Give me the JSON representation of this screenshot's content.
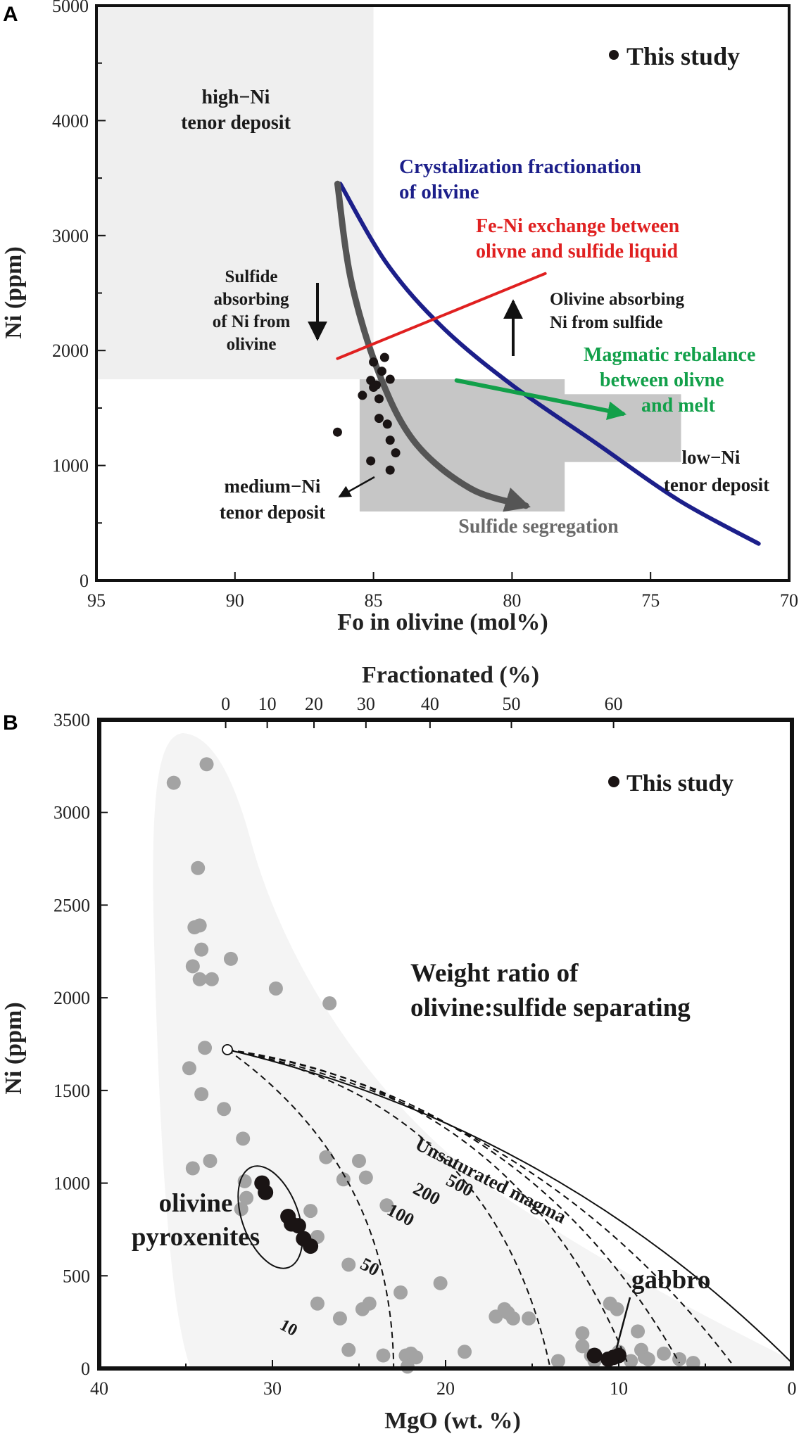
{
  "chart_data": [
    {
      "panel": "A",
      "type": "scatter",
      "xlabel": "Fo in olivine (mol%)",
      "ylabel": "Ni (ppm)",
      "xlim": [
        95,
        70
      ],
      "ylim": [
        0,
        5000
      ],
      "x_ticks": [
        95,
        90,
        85,
        80,
        75,
        70
      ],
      "y_ticks": [
        0,
        1000,
        2000,
        3000,
        4000,
        5000
      ],
      "legend": "This study",
      "regions": [
        {
          "name": "high-Ni-tenor",
          "x": [
            95,
            85
          ],
          "y": [
            1750,
            5000
          ],
          "color": "#efefef"
        },
        {
          "name": "medium-Ni-tenor",
          "x": [
            85.5,
            78.1
          ],
          "y": [
            600,
            1750
          ],
          "color": "#c6c6c6"
        },
        {
          "name": "low-Ni-tenor",
          "x": [
            78.8,
            73.9
          ],
          "y": [
            1030,
            1620
          ],
          "color": "#c6c6c6"
        }
      ],
      "points": [
        {
          "x": 86.3,
          "y": 1290
        },
        {
          "x": 85.0,
          "y": 1900
        },
        {
          "x": 84.6,
          "y": 1940
        },
        {
          "x": 84.7,
          "y": 1820
        },
        {
          "x": 84.4,
          "y": 1750
        },
        {
          "x": 85.1,
          "y": 1740
        },
        {
          "x": 84.9,
          "y": 1700
        },
        {
          "x": 85.0,
          "y": 1680
        },
        {
          "x": 85.4,
          "y": 1610
        },
        {
          "x": 84.8,
          "y": 1580
        },
        {
          "x": 84.8,
          "y": 1410
        },
        {
          "x": 84.5,
          "y": 1360
        },
        {
          "x": 84.4,
          "y": 1220
        },
        {
          "x": 84.2,
          "y": 1110
        },
        {
          "x": 85.1,
          "y": 1040
        },
        {
          "x": 84.4,
          "y": 960
        }
      ],
      "curves": [
        {
          "name": "crystallization",
          "color": "#1c1f8a",
          "points": [
            [
              86.2,
              3450
            ],
            [
              84.5,
              2750
            ],
            [
              82.5,
              2200
            ],
            [
              80,
              1700
            ],
            [
              77,
              1200
            ],
            [
              74,
              700
            ],
            [
              71.1,
              320
            ]
          ]
        },
        {
          "name": "sulfide-segregation",
          "color": "#555555",
          "points": [
            [
              86.3,
              3450
            ],
            [
              85.8,
              2600
            ],
            [
              84.8,
              1800
            ],
            [
              83.5,
              1200
            ],
            [
              81.5,
              800
            ],
            [
              79.5,
              650
            ]
          ]
        },
        {
          "name": "fe-ni-exchange",
          "color": "#e02020",
          "points": [
            [
              86.3,
              1930
            ],
            [
              78.8,
              2670
            ]
          ]
        },
        {
          "name": "magmatic-rebalance",
          "color": "#12a04a",
          "points": [
            [
              82.0,
              1740
            ],
            [
              76.0,
              1450
            ]
          ]
        }
      ],
      "labels": {
        "legend": "This study",
        "high_ni_1": "high−Ni",
        "high_ni_2": "tenor deposit",
        "crystal_1": "Crystalization fractionation",
        "crystal_2": "of olivine",
        "feni_1": "Fe-Ni exchange between",
        "feni_2": "olivne and sulfide liquid",
        "sulfide_abs_1": "Sulfide",
        "sulfide_abs_2": "absorbing",
        "sulfide_abs_3": "of Ni from",
        "sulfide_abs_4": "olivine",
        "oliv_abs_1": "Olivine absorbing",
        "oliv_abs_2": "Ni from sulfide",
        "magmatic_1": "Magmatic rebalance",
        "magmatic_2": "between olivne",
        "magmatic_3": "and melt",
        "low_ni_1": "low−Ni",
        "low_ni_2": "tenor deposit",
        "medium_ni_1": "medium−Ni",
        "medium_ni_2": "tenor deposit",
        "segregation": "Sulfide segregation"
      }
    },
    {
      "panel": "B",
      "type": "scatter",
      "xlabel": "MgO (wt. %)",
      "ylabel": "Ni (ppm)",
      "top_label": "Fractionated (%)",
      "xlim": [
        40,
        0
      ],
      "ylim": [
        0,
        3500
      ],
      "x_ticks": [
        40,
        30,
        20,
        10,
        0
      ],
      "y_ticks": [
        0,
        500,
        1000,
        1500,
        2000,
        2500,
        3000,
        3500
      ],
      "top_ticks": [
        {
          "label": "0",
          "mgo": 32.7
        },
        {
          "label": "10",
          "mgo": 30.3
        },
        {
          "label": "20",
          "mgo": 27.6
        },
        {
          "label": "30",
          "mgo": 24.6
        },
        {
          "label": "40",
          "mgo": 20.9
        },
        {
          "label": "50",
          "mgo": 16.2
        },
        {
          "label": "60",
          "mgo": 10.3
        }
      ],
      "legend": "This study",
      "start_point": {
        "x": 32.6,
        "y": 1720
      },
      "literature_points": [
        [
          35.7,
          3160
        ],
        [
          33.8,
          3260
        ],
        [
          34.3,
          2700
        ],
        [
          34.5,
          2380
        ],
        [
          34.2,
          2390
        ],
        [
          34.1,
          2260
        ],
        [
          34.6,
          2170
        ],
        [
          34.2,
          2100
        ],
        [
          33.5,
          2100
        ],
        [
          32.4,
          2210
        ],
        [
          29.8,
          2050
        ],
        [
          26.7,
          1970
        ],
        [
          33.9,
          1730
        ],
        [
          34.8,
          1620
        ],
        [
          34.1,
          1480
        ],
        [
          32.8,
          1400
        ],
        [
          31.7,
          1240
        ],
        [
          31.6,
          1010
        ],
        [
          31.5,
          920
        ],
        [
          31.8,
          860
        ],
        [
          34.6,
          1080
        ],
        [
          33.6,
          1120
        ],
        [
          26.9,
          1140
        ],
        [
          25.9,
          1020
        ],
        [
          25.0,
          1120
        ],
        [
          24.6,
          1030
        ],
        [
          23.4,
          880
        ],
        [
          27.8,
          850
        ],
        [
          27.4,
          710
        ],
        [
          25.6,
          560
        ],
        [
          27.4,
          350
        ],
        [
          26.1,
          270
        ],
        [
          24.8,
          320
        ],
        [
          24.4,
          350
        ],
        [
          22.6,
          410
        ],
        [
          20.3,
          460
        ],
        [
          25.6,
          100
        ],
        [
          23.6,
          70
        ],
        [
          22.3,
          70
        ],
        [
          22.0,
          80
        ],
        [
          21.7,
          60
        ],
        [
          22.2,
          10
        ],
        [
          18.9,
          90
        ],
        [
          17.1,
          280
        ],
        [
          16.6,
          320
        ],
        [
          16.4,
          300
        ],
        [
          16.1,
          270
        ],
        [
          15.2,
          270
        ],
        [
          13.5,
          40
        ],
        [
          12.1,
          190
        ],
        [
          12.1,
          120
        ],
        [
          11.6,
          70
        ],
        [
          11.4,
          40
        ],
        [
          10.5,
          350
        ],
        [
          10.1,
          320
        ],
        [
          10.0,
          90
        ],
        [
          9.3,
          40
        ],
        [
          8.9,
          200
        ],
        [
          8.7,
          100
        ],
        [
          8.5,
          60
        ],
        [
          8.3,
          50
        ],
        [
          7.4,
          80
        ],
        [
          6.5,
          50
        ],
        [
          5.7,
          30
        ]
      ],
      "study_points": [
        [
          30.6,
          1000
        ],
        [
          30.4,
          950
        ],
        [
          29.1,
          820
        ],
        [
          28.9,
          780
        ],
        [
          28.5,
          770
        ],
        [
          28.2,
          700
        ],
        [
          27.8,
          660
        ],
        [
          11.4,
          70
        ],
        [
          10.6,
          50
        ],
        [
          10.3,
          60
        ],
        [
          10.0,
          70
        ]
      ],
      "model_curves": [
        {
          "label": "10",
          "end": [
            23.0,
            0
          ],
          "bulge": 130
        },
        {
          "label": "50",
          "end": [
            14.0,
            20
          ],
          "bulge": 210
        },
        {
          "label": "100",
          "end": [
            9.5,
            30
          ],
          "bulge": 210
        },
        {
          "label": "200",
          "end": [
            6.5,
            30
          ],
          "bulge": 190
        },
        {
          "label": "500",
          "end": [
            3.5,
            30
          ],
          "bulge": 160
        },
        {
          "label": "Unsaturated magma",
          "end": [
            0,
            30
          ],
          "bulge": 130,
          "solid": true
        }
      ],
      "labels": {
        "legend": "This study",
        "weight_1": "Weight ratio of",
        "weight_2": "olivine:sulfide separating",
        "olivine_1": "olivine",
        "olivine_2": "pyroxenites",
        "gabbro": "gabbro",
        "c10": "10",
        "c50": "50",
        "c100": "100",
        "c200": "200",
        "c500": "500",
        "unsat": "Unsaturated magma"
      }
    }
  ],
  "panels": {
    "a": "A",
    "b": "B"
  },
  "colors": {
    "blue": "#1c1f8a",
    "red": "#e02020",
    "green": "#12a04a",
    "grey_arrow": "#555555",
    "dark_point": "#1a1414",
    "lit_point": "#a3a3a3",
    "field": "#f4f4f4"
  }
}
